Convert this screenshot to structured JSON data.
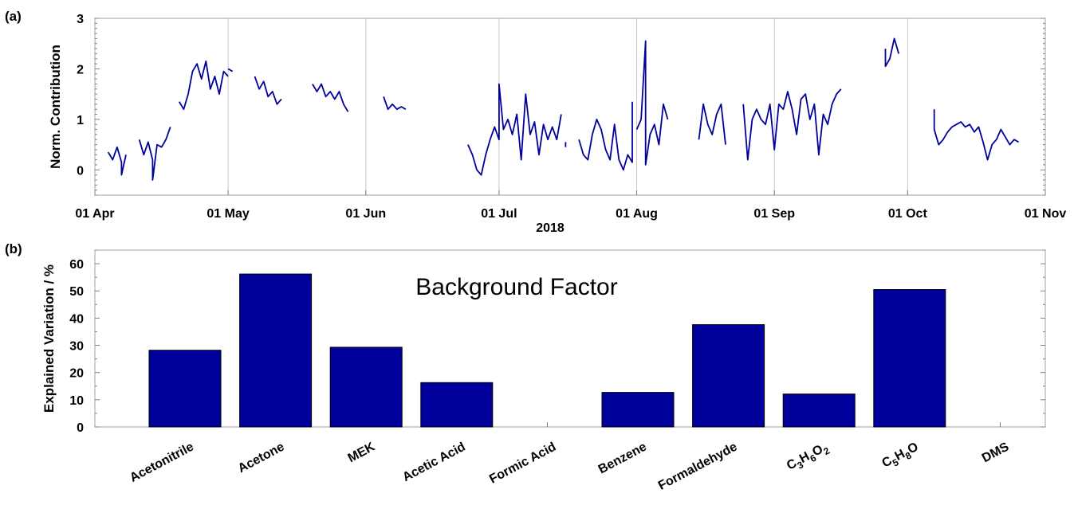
{
  "figure": {
    "panel_a_label": "(a)",
    "panel_b_label": "(b)"
  },
  "chart_data": [
    {
      "type": "line",
      "panel": "a",
      "ylabel": "Norm. Contribution",
      "xlabel": "2018",
      "ylim": [
        -0.5,
        3
      ],
      "yticks": [
        0,
        1,
        2,
        3
      ],
      "xlim": [
        "2018-04-01",
        "2018-11-01"
      ],
      "xticks": [
        "01 Apr",
        "01 May",
        "01 Jun",
        "01 Jul",
        "01 Aug",
        "01 Sep",
        "01 Oct",
        "01 Nov"
      ],
      "color": "#00009B",
      "grid": "vertical",
      "series": [
        {
          "segments": [
            [
              [
                "2018-04-04",
                0.35
              ],
              [
                "2018-04-05",
                0.2
              ],
              [
                "2018-04-06",
                0.45
              ],
              [
                "2018-04-07",
                0.15
              ],
              [
                "2018-04-07",
                -0.1
              ],
              [
                "2018-04-08",
                0.3
              ]
            ],
            [
              [
                "2018-04-11",
                0.6
              ],
              [
                "2018-04-12",
                0.3
              ],
              [
                "2018-04-13",
                0.55
              ],
              [
                "2018-04-14",
                0.2
              ],
              [
                "2018-04-14",
                -0.2
              ],
              [
                "2018-04-15",
                0.5
              ],
              [
                "2018-04-16",
                0.45
              ],
              [
                "2018-04-17",
                0.6
              ],
              [
                "2018-04-18",
                0.85
              ]
            ],
            [
              [
                "2018-04-20",
                1.35
              ],
              [
                "2018-04-21",
                1.2
              ],
              [
                "2018-04-22",
                1.5
              ],
              [
                "2018-04-23",
                1.95
              ],
              [
                "2018-04-24",
                2.1
              ],
              [
                "2018-04-25",
                1.8
              ],
              [
                "2018-04-26",
                2.15
              ],
              [
                "2018-04-27",
                1.6
              ],
              [
                "2018-04-28",
                1.85
              ],
              [
                "2018-04-29",
                1.5
              ],
              [
                "2018-04-30",
                1.95
              ],
              [
                "2018-05-01",
                1.85
              ]
            ],
            [
              [
                "2018-05-01",
                2.0
              ],
              [
                "2018-05-02",
                1.95
              ]
            ],
            [
              [
                "2018-05-07",
                1.85
              ],
              [
                "2018-05-08",
                1.6
              ],
              [
                "2018-05-09",
                1.75
              ],
              [
                "2018-05-10",
                1.45
              ],
              [
                "2018-05-11",
                1.55
              ],
              [
                "2018-05-12",
                1.3
              ],
              [
                "2018-05-13",
                1.4
              ]
            ],
            [
              [
                "2018-05-20",
                1.7
              ],
              [
                "2018-05-21",
                1.55
              ],
              [
                "2018-05-22",
                1.7
              ],
              [
                "2018-05-23",
                1.45
              ],
              [
                "2018-05-24",
                1.55
              ],
              [
                "2018-05-25",
                1.4
              ],
              [
                "2018-05-26",
                1.55
              ],
              [
                "2018-05-27",
                1.3
              ],
              [
                "2018-05-28",
                1.15
              ]
            ],
            [
              [
                "2018-06-05",
                1.45
              ],
              [
                "2018-06-06",
                1.2
              ],
              [
                "2018-06-07",
                1.3
              ],
              [
                "2018-06-08",
                1.2
              ],
              [
                "2018-06-09",
                1.25
              ],
              [
                "2018-06-10",
                1.2
              ]
            ],
            [
              [
                "2018-06-24",
                0.5
              ],
              [
                "2018-06-25",
                0.3
              ],
              [
                "2018-06-26",
                0.0
              ],
              [
                "2018-06-27",
                -0.1
              ],
              [
                "2018-06-28",
                0.3
              ],
              [
                "2018-06-29",
                0.6
              ],
              [
                "2018-06-30",
                0.85
              ],
              [
                "2018-07-01",
                0.6
              ],
              [
                "2018-07-01",
                1.7
              ],
              [
                "2018-07-02",
                0.8
              ],
              [
                "2018-07-03",
                1.0
              ],
              [
                "2018-07-04",
                0.7
              ],
              [
                "2018-07-05",
                1.1
              ],
              [
                "2018-07-06",
                0.2
              ],
              [
                "2018-07-07",
                1.5
              ],
              [
                "2018-07-08",
                0.7
              ],
              [
                "2018-07-09",
                0.95
              ],
              [
                "2018-07-10",
                0.3
              ],
              [
                "2018-07-11",
                0.9
              ],
              [
                "2018-07-12",
                0.6
              ],
              [
                "2018-07-13",
                0.85
              ],
              [
                "2018-07-14",
                0.6
              ],
              [
                "2018-07-15",
                1.1
              ]
            ],
            [
              [
                "2018-07-16",
                0.55
              ],
              [
                "2018-07-16",
                0.45
              ]
            ],
            [
              [
                "2018-07-19",
                0.6
              ],
              [
                "2018-07-20",
                0.3
              ],
              [
                "2018-07-21",
                0.2
              ],
              [
                "2018-07-22",
                0.7
              ],
              [
                "2018-07-23",
                1.0
              ],
              [
                "2018-07-24",
                0.8
              ],
              [
                "2018-07-25",
                0.4
              ],
              [
                "2018-07-26",
                0.2
              ],
              [
                "2018-07-27",
                0.9
              ],
              [
                "2018-07-28",
                0.2
              ],
              [
                "2018-07-29",
                0.0
              ],
              [
                "2018-07-30",
                0.3
              ],
              [
                "2018-07-31",
                0.15
              ],
              [
                "2018-07-31",
                1.35
              ]
            ],
            [
              [
                "2018-08-01",
                0.8
              ],
              [
                "2018-08-02",
                1.0
              ],
              [
                "2018-08-03",
                2.55
              ],
              [
                "2018-08-03",
                0.1
              ],
              [
                "2018-08-04",
                0.7
              ],
              [
                "2018-08-05",
                0.9
              ],
              [
                "2018-08-06",
                0.5
              ],
              [
                "2018-08-07",
                1.3
              ],
              [
                "2018-08-08",
                1.0
              ]
            ],
            [
              [
                "2018-08-15",
                0.6
              ],
              [
                "2018-08-16",
                1.3
              ],
              [
                "2018-08-17",
                0.9
              ],
              [
                "2018-08-18",
                0.7
              ],
              [
                "2018-08-19",
                1.1
              ],
              [
                "2018-08-20",
                1.3
              ],
              [
                "2018-08-21",
                0.5
              ]
            ],
            [
              [
                "2018-08-25",
                1.3
              ],
              [
                "2018-08-26",
                0.2
              ],
              [
                "2018-08-27",
                1.0
              ],
              [
                "2018-08-28",
                1.2
              ],
              [
                "2018-08-29",
                1.0
              ],
              [
                "2018-08-30",
                0.9
              ],
              [
                "2018-08-31",
                1.3
              ],
              [
                "2018-09-01",
                0.4
              ],
              [
                "2018-09-02",
                1.3
              ],
              [
                "2018-09-03",
                1.2
              ],
              [
                "2018-09-04",
                1.55
              ],
              [
                "2018-09-05",
                1.2
              ],
              [
                "2018-09-06",
                0.7
              ],
              [
                "2018-09-07",
                1.4
              ],
              [
                "2018-09-08",
                1.5
              ],
              [
                "2018-09-09",
                1.0
              ],
              [
                "2018-09-10",
                1.3
              ],
              [
                "2018-09-11",
                0.3
              ],
              [
                "2018-09-12",
                1.1
              ],
              [
                "2018-09-13",
                0.9
              ],
              [
                "2018-09-14",
                1.3
              ],
              [
                "2018-09-15",
                1.5
              ],
              [
                "2018-09-16",
                1.6
              ]
            ],
            [
              [
                "2018-09-26",
                2.4
              ],
              [
                "2018-09-26",
                2.05
              ],
              [
                "2018-09-27",
                2.2
              ],
              [
                "2018-09-28",
                2.6
              ],
              [
                "2018-09-29",
                2.3
              ]
            ],
            [
              [
                "2018-10-07",
                1.2
              ],
              [
                "2018-10-07",
                0.8
              ],
              [
                "2018-10-08",
                0.5
              ],
              [
                "2018-10-09",
                0.6
              ],
              [
                "2018-10-10",
                0.75
              ],
              [
                "2018-10-11",
                0.85
              ],
              [
                "2018-10-12",
                0.9
              ],
              [
                "2018-10-13",
                0.95
              ],
              [
                "2018-10-14",
                0.85
              ],
              [
                "2018-10-15",
                0.9
              ],
              [
                "2018-10-16",
                0.75
              ],
              [
                "2018-10-17",
                0.85
              ],
              [
                "2018-10-18",
                0.55
              ],
              [
                "2018-10-19",
                0.2
              ],
              [
                "2018-10-20",
                0.5
              ],
              [
                "2018-10-21",
                0.6
              ],
              [
                "2018-10-22",
                0.8
              ],
              [
                "2018-10-23",
                0.65
              ],
              [
                "2018-10-24",
                0.5
              ],
              [
                "2018-10-25",
                0.6
              ],
              [
                "2018-10-26",
                0.55
              ]
            ]
          ]
        }
      ]
    },
    {
      "type": "bar",
      "panel": "b",
      "annotation": "Background Factor",
      "ylabel": "Explained Variation / %",
      "ylim": [
        0,
        65
      ],
      "yticks": [
        0,
        10,
        20,
        30,
        40,
        50,
        60
      ],
      "color": "#00009B",
      "categories": [
        {
          "label": "Acetonitrile",
          "parts": [
            [
              "Acetonitrile",
              ""
            ]
          ]
        },
        {
          "label": "Acetone",
          "parts": [
            [
              "Acetone",
              ""
            ]
          ]
        },
        {
          "label": "MEK",
          "parts": [
            [
              "MEK",
              ""
            ]
          ]
        },
        {
          "label": "Acetic Acid",
          "parts": [
            [
              "Acetic Acid",
              ""
            ]
          ]
        },
        {
          "label": "Formic Acid",
          "parts": [
            [
              "Formic Acid",
              ""
            ]
          ]
        },
        {
          "label": "Benzene",
          "parts": [
            [
              "Benzene",
              ""
            ]
          ]
        },
        {
          "label": "Formaldehyde",
          "parts": [
            [
              "Formaldehyde",
              ""
            ]
          ]
        },
        {
          "label": "C3H6O2",
          "parts": [
            [
              "C",
              "3"
            ],
            [
              "H",
              "6"
            ],
            [
              "O",
              "2"
            ]
          ]
        },
        {
          "label": "C5H8O",
          "parts": [
            [
              "C",
              "5"
            ],
            [
              "H",
              "8"
            ],
            [
              "O",
              ""
            ]
          ]
        },
        {
          "label": "DMS",
          "parts": [
            [
              "DMS",
              ""
            ]
          ]
        }
      ],
      "values": [
        28.2,
        56.2,
        29.3,
        16.3,
        0,
        12.7,
        37.6,
        12.1,
        50.5,
        0
      ]
    }
  ]
}
